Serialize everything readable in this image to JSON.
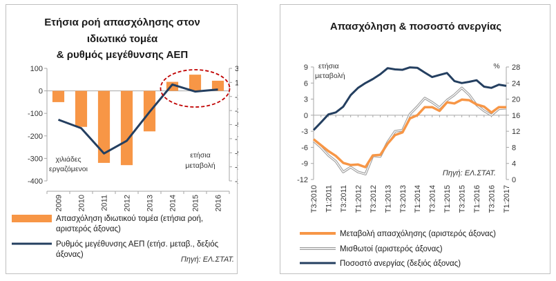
{
  "charts": {
    "left": {
      "title_lines": [
        "Ετήσια ροή απασχόλησης στον",
        "ιδιωτικό τομέα",
        "& ρυθμός μεγέθυνσης ΑΕΠ"
      ],
      "y_left_note": [
        "χιλιάδες",
        "εργαζόμενοι"
      ],
      "y_right_note": [
        "ετήσια",
        "μεταβολή"
      ],
      "legend": [
        {
          "label_lines": [
            "Απασχόληση ιδιωτικού τομέα (ετήσια ροή,",
            "αριστερός άξονας)"
          ]
        },
        {
          "label_lines": [
            "Ρυθμός μεγέθυνσης ΑΕΠ (ετήσ. μεταβ., δεξιός",
            "άξονας)"
          ]
        }
      ],
      "source": "Πηγή: ΕΛ.ΣΤΑΤ."
    },
    "right": {
      "title": "Απασχόληση & ποσοστό ανεργίας",
      "y_left_note": [
        "ετήσια",
        "μεταβολή"
      ],
      "y_right_unit": "%",
      "legend": [
        {
          "label": "Μεταβολή απασχόλησης (αριστερός άξονας)"
        },
        {
          "label": "Μισθωτοί (αριστερός άξονας)"
        },
        {
          "label": "Ποσοστό ανεργίας (δεξιός άξονας)"
        }
      ],
      "source": "Πηγή: ΕΛ.ΣΤΑΤ."
    }
  },
  "colors": {
    "orange": "#f79646",
    "navy": "#243f60",
    "gray": "#9e9e9e",
    "highlight": "#c00000"
  },
  "chart_data": [
    {
      "type": "bar+line",
      "title": "Ετήσια ροή απασχόλησης στον ιδιωτικό τομέα & ρυθμός μεγέθυνσης ΑΕΠ",
      "categories": [
        "2009",
        "2010",
        "2011",
        "2012",
        "2013",
        "2014",
        "2015",
        "2016"
      ],
      "series": [
        {
          "name": "Απασχόληση ιδιωτικού τομέα (ετήσια ροή, αριστερός άξονας)",
          "type": "bar",
          "axis": "left",
          "values": [
            -50,
            -160,
            -320,
            -330,
            -180,
            40,
            72,
            45
          ]
        },
        {
          "name": "Ρυθμός μεγέθυνσης ΑΕΠ (ετήσ. μεταβ., δεξιός άξονας)",
          "type": "line",
          "axis": "right",
          "values": [
            -4.3,
            -5.5,
            -9.1,
            -7.3,
            -3.2,
            0.7,
            -0.3,
            0.0
          ]
        }
      ],
      "y_left": {
        "min": -400,
        "max": 100,
        "ticks": [
          100,
          0,
          -100,
          -200,
          -300,
          -400
        ]
      },
      "y_right": {
        "min": -13,
        "max": 3,
        "ticks": [
          3,
          1,
          -1,
          -3,
          -5,
          -7,
          -9,
          -11,
          -13
        ]
      },
      "highlight_categories": [
        "2014",
        "2015",
        "2016"
      ]
    },
    {
      "type": "line",
      "title": "Απασχόληση & ποσοστό ανεργίας",
      "x": [
        "Τ3:2010",
        "Τ4:2010",
        "Τ1:2011",
        "Τ2:2011",
        "Τ3:2011",
        "Τ4:2011",
        "Τ1:2012",
        "Τ2:2012",
        "Τ3:2012",
        "Τ4:2012",
        "Τ1:2013",
        "Τ2:2013",
        "Τ3:2013",
        "Τ4:2013",
        "Τ1:2014",
        "Τ2:2014",
        "Τ3:2014",
        "Τ4:2014",
        "Τ1:2015",
        "Τ2:2015",
        "Τ3:2015",
        "Τ4:2015",
        "Τ1:2016",
        "Τ2:2016",
        "Τ3:2016",
        "Τ4:2016",
        "Τ1:2017"
      ],
      "x_tick_labels": [
        "Τ3:2010",
        "Τ1:2011",
        "Τ3:2011",
        "Τ1:2012",
        "Τ3:2012",
        "Τ1:2013",
        "Τ3:2013",
        "Τ1:2014",
        "Τ3:2014",
        "Τ1:2015",
        "Τ3:2015",
        "Τ1:2016",
        "Τ3:2016",
        "Τ1:2017"
      ],
      "series": [
        {
          "name": "Μεταβολή απασχόλησης (αριστερός άξονας)",
          "axis": "left",
          "values": [
            -4.5,
            -5.6,
            -6.7,
            -7.6,
            -8.9,
            -9.3,
            -9.2,
            -9.7,
            -7.5,
            -7.4,
            -5.3,
            -3.7,
            -3.2,
            -0.6,
            0.0,
            1.5,
            1.5,
            0.8,
            2.4,
            2.2,
            2.9,
            2.8,
            2.0,
            1.6,
            0.5,
            1.5,
            1.5
          ]
        },
        {
          "name": "Μισθωτοί (αριστερός άξονας)",
          "axis": "left",
          "values": [
            -4.8,
            -6.0,
            -7.5,
            -8.6,
            -10.6,
            -9.7,
            -10.6,
            -11.0,
            -7.6,
            -7.7,
            -5.0,
            -3.0,
            -2.8,
            0.2,
            1.6,
            3.2,
            2.4,
            1.4,
            2.8,
            3.8,
            5.1,
            3.8,
            1.9,
            0.8,
            0.0,
            1.2,
            1.3
          ]
        },
        {
          "name": "Ποσοστό ανεργίας (δεξιός άξονας)",
          "axis": "right",
          "values": [
            12.3,
            14.2,
            16.2,
            16.7,
            18.1,
            21.0,
            22.8,
            24.0,
            25.0,
            26.2,
            27.7,
            27.4,
            27.3,
            27.9,
            27.8,
            26.6,
            25.5,
            26.0,
            26.5,
            24.5,
            24.0,
            24.3,
            24.7,
            23.1,
            22.8,
            23.6,
            23.3
          ]
        }
      ],
      "y_left": {
        "min": -12,
        "max": 9,
        "ticks": [
          9,
          6,
          3,
          0,
          -3,
          -6,
          -9,
          -12
        ]
      },
      "y_right": {
        "min": 0,
        "max": 28,
        "ticks": [
          28,
          24,
          20,
          16,
          12,
          8,
          4,
          0
        ]
      }
    }
  ]
}
